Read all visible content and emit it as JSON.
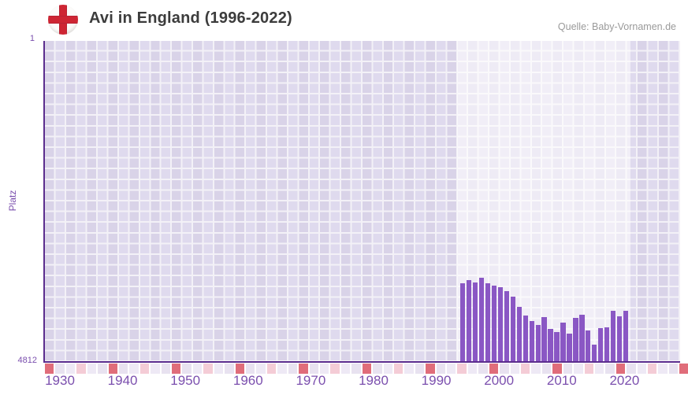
{
  "header": {
    "title": "Avi in England (1996-2022)",
    "source": "Quelle: Baby-Vornamen.de",
    "flag_icon": "england-flag-icon"
  },
  "axes": {
    "y_label": "Platz",
    "y_top_tick": "1",
    "y_bottom_tick": "4812",
    "x_ticks": [
      "1930",
      "1940",
      "1950",
      "1960",
      "1970",
      "1980",
      "1990",
      "2000",
      "2010",
      "2020"
    ]
  },
  "colors": {
    "bar": "#8a57c4",
    "axis_line": "#5b2d8e",
    "tick_text": "#7b4fae",
    "decade_cell": "#e06d7a",
    "midpoint_cell": "#f4ccd6"
  },
  "chart_data": {
    "type": "bar",
    "title": "Avi in England (1996-2022)",
    "xlabel": "",
    "ylabel": "Platz",
    "x": [
      1996,
      1997,
      1998,
      1999,
      2000,
      2001,
      2002,
      2003,
      2004,
      2005,
      2006,
      2007,
      2008,
      2009,
      2010,
      2011,
      2012,
      2013,
      2014,
      2015,
      2016,
      2017,
      2018,
      2019,
      2020,
      2021,
      2022
    ],
    "values": [
      3635,
      3585,
      3620,
      3550,
      3630,
      3670,
      3690,
      3750,
      3830,
      3985,
      4115,
      4200,
      4255,
      4135,
      4320,
      4360,
      4220,
      4390,
      4155,
      4100,
      4340,
      4555,
      4310,
      4290,
      4045,
      4125,
      4050
    ],
    "ylim": [
      1,
      4812
    ],
    "y_axis_inverted": true,
    "x_axis_range": [
      1927,
      2028
    ],
    "highlighted_x_range": [
      1994,
      2022
    ],
    "grid": true,
    "legend": false
  }
}
